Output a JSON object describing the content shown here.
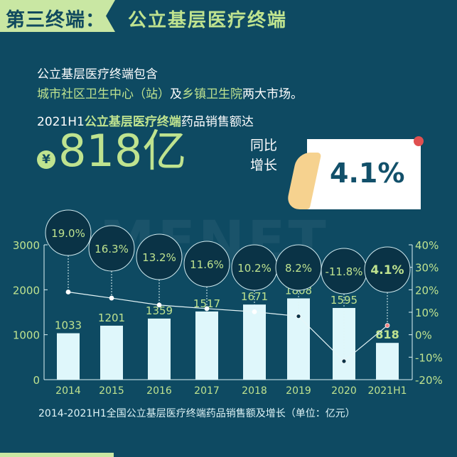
{
  "header": {
    "tag": "第三终端：",
    "title": "公立基层医疗终端"
  },
  "intro": {
    "line1": "公立基层医疗终端包含",
    "line2_a": "城市社区卫生中心（站）",
    "line2_b": "及",
    "line2_c": "乡镇卫生院",
    "line2_d": "两大市场。"
  },
  "headline": {
    "prefix": "2021H1",
    "highlight": "公立基层医疗终端",
    "suffix": "药品销售额达",
    "currency_symbol": "¥",
    "amount": "818亿"
  },
  "yoy": {
    "label1": "同比",
    "label2": "增长",
    "value": "4.1%"
  },
  "watermark": "MENET",
  "colors": {
    "background": "#0e4a62",
    "accent": "#bfe38f",
    "bar": "#dff7fb",
    "line": "#e6f6f8"
  },
  "chart_data": {
    "type": "bar+line",
    "categories": [
      "2014",
      "2015",
      "2016",
      "2017",
      "2018",
      "2019",
      "2020",
      "2021H1"
    ],
    "series": [
      {
        "type": "bar",
        "axis": "left",
        "values": [
          1033,
          1201,
          1359,
          1517,
          1671,
          1808,
          1595,
          818
        ],
        "labels": [
          "1033",
          "1201",
          "1359",
          "1517",
          "1671",
          "1808",
          "1595",
          "818"
        ]
      },
      {
        "type": "line",
        "axis": "right",
        "values": [
          19.0,
          16.3,
          13.2,
          11.6,
          10.2,
          8.2,
          -11.8,
          4.1
        ],
        "labels": [
          "19.0%",
          "16.3%",
          "13.2%",
          "11.6%",
          "10.2%",
          "8.2%",
          "-11.8%",
          "4.1%"
        ]
      }
    ],
    "left_axis": {
      "ylim": [
        0,
        3000
      ],
      "ticks": [
        "0",
        "1000",
        "2000",
        "3000"
      ]
    },
    "right_axis": {
      "ylim": [
        -20,
        40
      ],
      "ticks": [
        "-20%",
        "-10%",
        "0%",
        "10%",
        "20%",
        "30%",
        "40%"
      ]
    },
    "grid": false,
    "caption": "2014-2021H1全国公立基层医疗终端药品销售额及增长（单位：亿元）"
  }
}
